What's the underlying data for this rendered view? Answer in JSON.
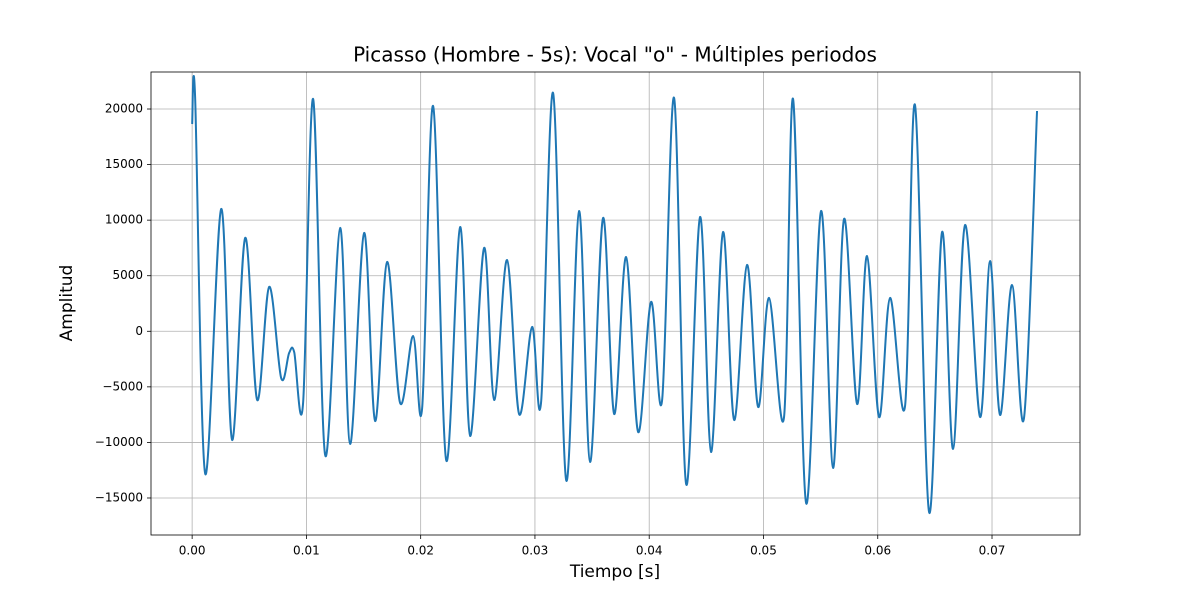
{
  "chart_data": {
    "type": "line",
    "title": "Picasso (Hombre - 5s): Vocal \"o\" - Múltiples periodos",
    "x_label": "Tiempo [s]",
    "y_label": "Amplitud",
    "x": [
      0.0,
      0.00026,
      0.00114,
      0.00254,
      0.0035,
      0.00464,
      0.00569,
      0.00674,
      0.00779,
      0.00849,
      0.00893,
      0.00971,
      0.01059,
      0.01164,
      0.01295,
      0.01383,
      0.01505,
      0.01601,
      0.01706,
      0.0182,
      0.01934,
      0.02013,
      0.02109,
      0.02223,
      0.02345,
      0.02433,
      0.02555,
      0.02643,
      0.02756,
      0.02861,
      0.02975,
      0.03054,
      0.03159,
      0.03273,
      0.03386,
      0.03483,
      0.03596,
      0.03693,
      0.03798,
      0.03903,
      0.04016,
      0.04113,
      0.04218,
      0.04323,
      0.04445,
      0.04541,
      0.04646,
      0.04743,
      0.04856,
      0.04953,
      0.05049,
      0.0518,
      0.05259,
      0.05373,
      0.05504,
      0.05609,
      0.05705,
      0.05819,
      0.05906,
      0.06011,
      0.06108,
      0.06239,
      0.06326,
      0.06449,
      0.06563,
      0.06659,
      0.06764,
      0.06895,
      0.06983,
      0.0707,
      0.07175,
      0.0728,
      0.07394
    ],
    "series": [
      {
        "color": "#1f77b4",
        "values": [
          18650,
          21080,
          -12800,
          11000,
          -9780,
          8400,
          -6180,
          4000,
          -4200,
          -1950,
          -1860,
          -6450,
          20900,
          -11130,
          9300,
          -10140,
          8850,
          -8070,
          6240,
          -6450,
          -420,
          -6900,
          20270,
          -11580,
          9380,
          -9420,
          7500,
          -6180,
          6410,
          -7440,
          390,
          -6360,
          21440,
          -13380,
          10820,
          -11760,
          10190,
          -7440,
          6680,
          -9060,
          2640,
          -6180,
          20990,
          -13740,
          10280,
          -10860,
          8930,
          -7980,
          5970,
          -6810,
          3000,
          -7710,
          20900,
          -15450,
          10820,
          -12300,
          10100,
          -6540,
          6770,
          -7710,
          3000,
          -6720,
          20360,
          -16260,
          8930,
          -10590,
          9560,
          -7710,
          6320,
          -7530,
          4160,
          -7800,
          19820
        ]
      }
    ],
    "xlim": [
      -0.0036,
      0.0777
    ],
    "ylim": [
      -18330,
      23330
    ],
    "xticks": [
      {
        "value": 0,
        "label": "0.00"
      },
      {
        "value": 0.01,
        "label": "0.01"
      },
      {
        "value": 0.02,
        "label": "0.02"
      },
      {
        "value": 0.03,
        "label": "0.03"
      },
      {
        "value": 0.04,
        "label": "0.04"
      },
      {
        "value": 0.05,
        "label": "0.05"
      },
      {
        "value": 0.06,
        "label": "0.06"
      },
      {
        "value": 0.07,
        "label": "0.07"
      }
    ],
    "yticks": [
      {
        "value": -15000,
        "label": "−15000"
      },
      {
        "value": -10000,
        "label": "−10000"
      },
      {
        "value": -5000,
        "label": "−5000"
      },
      0,
      5000,
      10000,
      15000,
      20000
    ],
    "grid": true
  }
}
